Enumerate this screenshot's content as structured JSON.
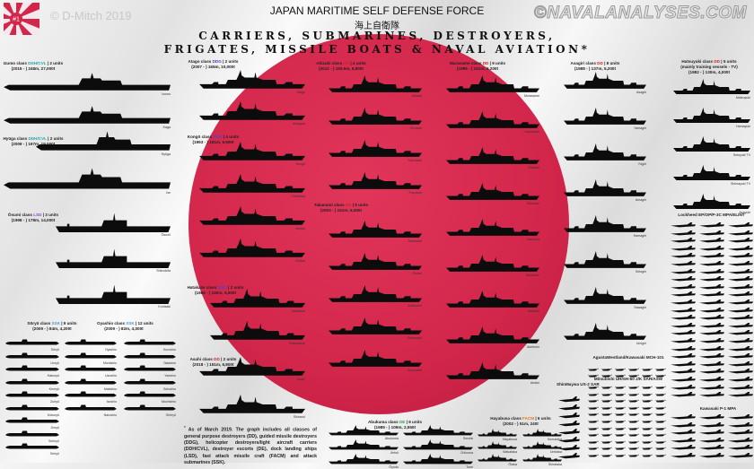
{
  "header": {
    "logo_text": "#1",
    "credit": "© D-Mitch 2019",
    "watermark": "©NAVALANALYSES.COM",
    "title": "JAPAN MARITIME SELF DEFENSE FORCE",
    "title_japanese": "海上自衛隊",
    "subtitle_line1": "CARRIERS, SUBMARINES, DESTROYERS,",
    "subtitle_line2": "FRIGATES, MISSILE BOATS & NAVAL AVIATION*"
  },
  "colors": {
    "sun": "#d3264b",
    "DDH/CVL": "#2aa3a3",
    "DDG": "#4646d0",
    "DD": "#d02020",
    "LSD": "#8a46d0",
    "SSK": "#4a9ad8",
    "DE": "#3aa040",
    "FACM": "#e07820"
  },
  "classes": [
    {
      "id": "izumo",
      "name": "Izumo class",
      "type": "DDH/CVL",
      "units": "| 2 units",
      "specs": "(2015 - ) 248m, 27,000t",
      "ships": [
        "Izumo",
        "Kaga"
      ]
    },
    {
      "id": "hyuga",
      "name": "Hyūga class",
      "type": "DDH/CVL",
      "units": "| 2 units",
      "specs": "(2009 - ) 197m, 19,000t",
      "ships": [
        "Hyūga",
        "Ise"
      ]
    },
    {
      "id": "osumi",
      "name": "Ōsumi class",
      "type": "LSD",
      "units": "| 3 units",
      "specs": "(1998 - ) 178m, 14,000t",
      "ships": [
        "Ōsumi",
        "Shimokita",
        "Kunisaki"
      ]
    },
    {
      "id": "soryu",
      "name": "Sōryū class",
      "type": "SSK",
      "units": "| 9 units",
      "specs": "(2009 - ) 84m, 4,200t",
      "ships": [
        "Sōryū",
        "Unryū",
        "Hakuryū",
        "Kenryū",
        "Zuiryū",
        "Kokuryū",
        "Jinryū",
        "Sekiryū",
        "Seiryū"
      ]
    },
    {
      "id": "oyashio",
      "name": "Oyashio class",
      "type": "SSK",
      "units": "| 12 units",
      "specs": "(2009 - ) 82m, 4,000t",
      "ships": [
        "Oyashio",
        "Michishio",
        "Uzushio",
        "Makishio",
        "Isoshio",
        "Narushio",
        "Kuroshio",
        "Takashio",
        "Yaeshio",
        "Setoshio",
        "Mochishio",
        "Shōryū"
      ]
    },
    {
      "id": "atago",
      "name": "Atago class",
      "type": "DDG",
      "units": "| 2 units",
      "specs": "(2007 - ) 165m, 10,000t",
      "ships": [
        "Atago",
        "Ashigara"
      ]
    },
    {
      "id": "kongo",
      "name": "Kongō class",
      "type": "DDG",
      "units": "| 4 units",
      "specs": "(1993 - ) 161m, 9,500t",
      "ships": [
        "Kongō",
        "Kirishima",
        "Myōkō",
        "Chōkai"
      ]
    },
    {
      "id": "hatakaze",
      "name": "Hatakaze class",
      "type": "DDG",
      "units": "| 2 units",
      "specs": "(1986 - ) 150m, 5,900t",
      "ships": [
        "Hatakaze",
        "Shimakaze"
      ]
    },
    {
      "id": "asahi",
      "name": "Asahi class",
      "type": "DD",
      "units": "| 2 units",
      "specs": "(2018 - ) 151m, 6,800t",
      "ships": [
        "Asahi",
        "Shiranui"
      ]
    },
    {
      "id": "akizuki",
      "name": "Akizuki class",
      "type": "DD",
      "units": "| 4 units",
      "specs": "(2012 - ) 150.5m, 6,800t",
      "ships": [
        "Akizuki",
        "Teruzuki",
        "Suzutsuki",
        "Fuyuzuki"
      ]
    },
    {
      "id": "takanami",
      "name": "Takanami class",
      "type": "DD",
      "units": "| 5 units",
      "specs": "(2003 - ) 151m, 6,300t",
      "ships": [
        "Takanami",
        "Ōnami",
        "Makinami",
        "Sazanami",
        "Suzunami"
      ]
    },
    {
      "id": "murasame",
      "name": "Murasame class",
      "type": "DD",
      "units": "| 9 units",
      "specs": "(1996 - ) 151m, 6,200t",
      "ships": [
        "Murasame",
        "Harusame",
        "Yūdachi",
        "Kirisame",
        "Inazuma",
        "Samidare",
        "Ikazuchi",
        "Akebono",
        "Ariake"
      ]
    },
    {
      "id": "asagiri",
      "name": "Asagiri class",
      "type": "DD",
      "units": "| 8 units",
      "specs": "(1988 - ) 137m, 5,200t",
      "ships": [
        "Asagiri",
        "Yamagiri",
        "Yūgiri",
        "Amagiri",
        "Hamagiri",
        "Setogiri",
        "Sawagiri",
        "Umigiri"
      ]
    },
    {
      "id": "hatsuyuki",
      "name": "Hatsuyuki class",
      "type": "DD",
      "units": "| 5 units",
      "extra": "(mainly training vessels - TV)",
      "specs": "(1982 - ) 130m, 4,000t",
      "ships": [
        "Matsuyuki",
        "Hamayuki",
        "Setoyuki TV",
        "Shimayuki TV",
        "Asayuki"
      ]
    },
    {
      "id": "abukuma",
      "name": "Abukuma class",
      "type": "DE",
      "units": "| 6 units",
      "specs": "(1989 - ) 109m, 2,550t",
      "ships": [
        "Abukuma",
        "Sendai",
        "Jintsū",
        "Chikuma",
        "Ōyodo",
        "Tone"
      ]
    },
    {
      "id": "hayabusa",
      "name": "Hayabusa class",
      "type": "FACM",
      "units": "| 6 units",
      "specs": "(2002 - ) 51m, 240t",
      "ships": [
        "Hayabusa",
        "Kumataka",
        "Wakataka",
        "Umitaka",
        "Ōtaka",
        "Shirataka"
      ]
    }
  ],
  "aviation": [
    {
      "id": "p3c",
      "label": "Lockheed EP/OP/P-3C MPA/ELINT"
    },
    {
      "id": "p1",
      "label": "Kawasaki P-1 MPA"
    },
    {
      "id": "mch101",
      "label": "AgustaWestland/Kawasaki MCH-101"
    },
    {
      "id": "sh60",
      "label": "Mitsubishi UH/SH-60 J/K SAR/ASW"
    },
    {
      "id": "us2",
      "label": "ShinMaywa US-2 SAR"
    }
  ],
  "footnote": {
    "marker": "*",
    "text": "As of March 2019. The graph includes all classes of general purpose destroyers (DD), guided missile destroyers (DDG), helicopter destroyers/light aircraft carriers (DDH/CVL), destroyer escorts (DE), dock landing ships (LSD), fast attack missile craft (FACM) and attack submarines (SSK)."
  }
}
